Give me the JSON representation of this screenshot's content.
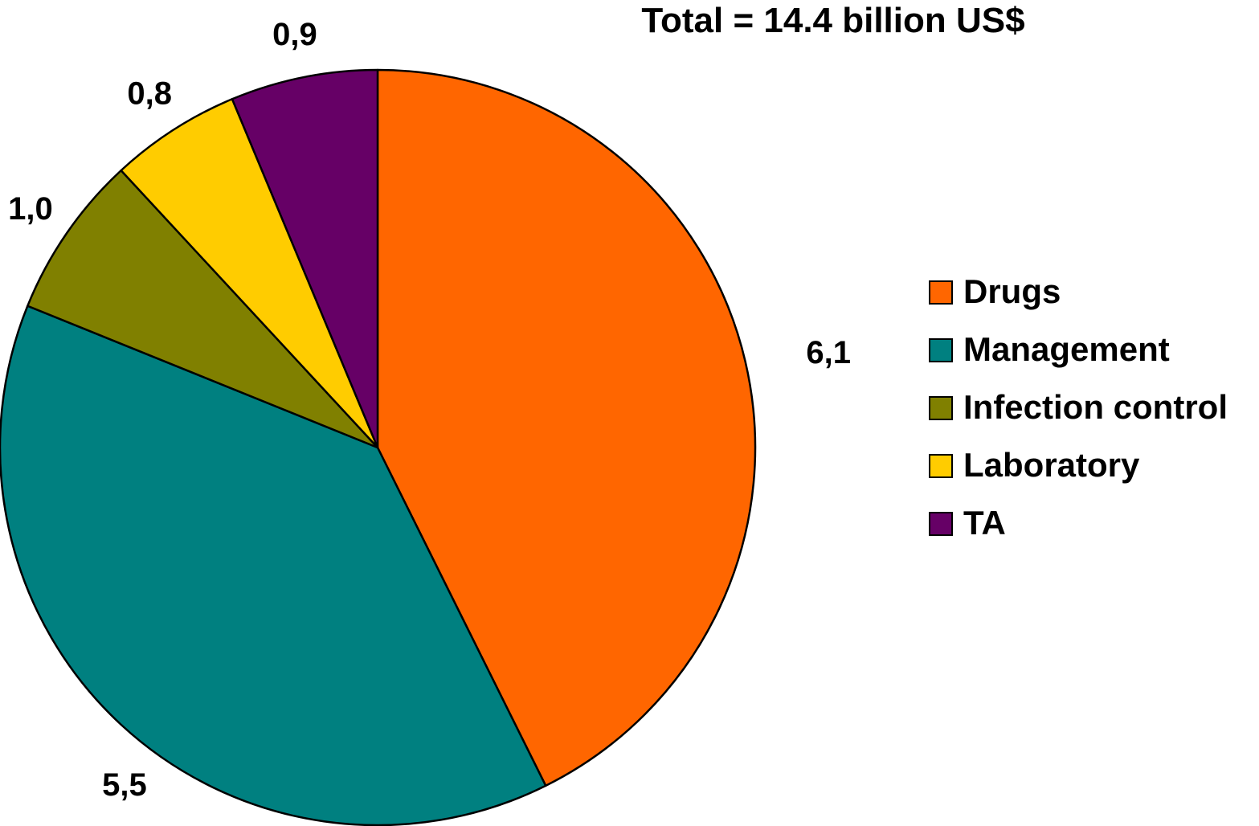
{
  "chart_data": {
    "type": "pie",
    "title": "Total = 14.4 billion US$",
    "categories": [
      "Drugs",
      "Management",
      "Infection control",
      "Laboratory",
      "TA"
    ],
    "values": [
      6.1,
      5.5,
      1.0,
      0.8,
      0.9
    ],
    "data_labels": [
      "6,1",
      "5,5",
      "1,0",
      "0,8",
      "0,9"
    ],
    "colors": [
      "#FF6600",
      "#008080",
      "#808000",
      "#FFCC00",
      "#660066"
    ],
    "legend": {
      "position": "right",
      "items": [
        {
          "label": "Drugs",
          "color": "#FF6600"
        },
        {
          "label": "Management",
          "color": "#008080"
        },
        {
          "label": "Infection control",
          "color": "#808000"
        },
        {
          "label": "Laboratory",
          "color": "#FFCC00"
        },
        {
          "label": "TA",
          "color": "#660066"
        }
      ]
    }
  }
}
